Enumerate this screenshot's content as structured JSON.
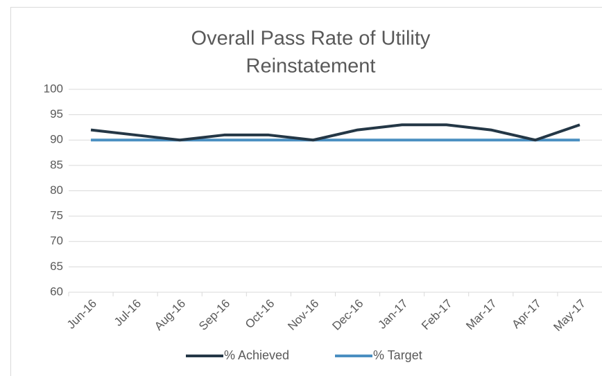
{
  "chart_data": {
    "type": "line",
    "title": [
      "Overall Pass Rate of Utility",
      "Reinstatement"
    ],
    "categories": [
      "Jun-16",
      "Jul-16",
      "Aug-16",
      "Sep-16",
      "Oct-16",
      "Nov-16",
      "Dec-16",
      "Jan-17",
      "Feb-17",
      "Mar-17",
      "Apr-17",
      "May-17"
    ],
    "series": [
      {
        "name": "% Achieved",
        "color": "#243746",
        "values": [
          92,
          91,
          90,
          91,
          91,
          90,
          92,
          93,
          93,
          92,
          90,
          93
        ]
      },
      {
        "name": "% Target",
        "color": "#4a8fc1",
        "values": [
          90,
          90,
          90,
          90,
          90,
          90,
          90,
          90,
          90,
          90,
          90,
          90
        ]
      }
    ],
    "ylim": [
      60,
      100
    ],
    "yticks": [
      60,
      65,
      70,
      75,
      80,
      85,
      90,
      95,
      100
    ],
    "grid": true,
    "legend": "bottom"
  }
}
